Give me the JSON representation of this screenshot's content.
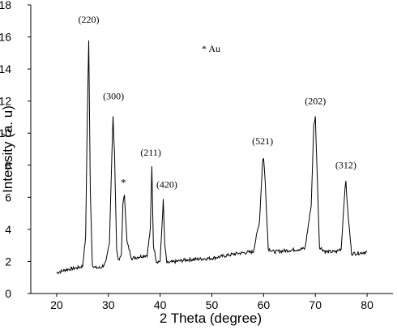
{
  "chart_data": {
    "type": "line",
    "title": "",
    "xlabel": "2 Theta (degree)",
    "ylabel": "Intensity (a. u)",
    "xlim": [
      15,
      85
    ],
    "ylim": [
      0,
      18
    ],
    "xticks": [
      20,
      30,
      40,
      50,
      60,
      70,
      80
    ],
    "yticks": [
      0,
      2,
      4,
      6,
      8,
      10,
      12,
      14,
      16,
      18
    ],
    "grid": false,
    "legend": {
      "text": "* Au",
      "placement": "top-center"
    },
    "series": [
      {
        "x": [
          20.0,
          22.0,
          24.0,
          25.0,
          25.6,
          25.9,
          26.2,
          26.5,
          26.9,
          27.5,
          28.5,
          29.5,
          30.2,
          30.7,
          30.9,
          31.2,
          31.6,
          32.0,
          32.5,
          32.8,
          33.1,
          33.6,
          34.5,
          36.0,
          37.5,
          38.1,
          38.4,
          38.7,
          39.3,
          40.0,
          40.4,
          40.6,
          40.9,
          41.3,
          45.0,
          50.0,
          55.0,
          58.0,
          59.2,
          59.8,
          60.0,
          60.3,
          60.9,
          62.0,
          65.0,
          68.0,
          69.2,
          69.7,
          70.0,
          70.3,
          70.8,
          72.0,
          74.0,
          75.0,
          75.6,
          75.9,
          76.3,
          77.0,
          78.0,
          80.0
        ],
        "y": [
          1.3,
          1.5,
          1.6,
          1.7,
          3.5,
          10.5,
          15.8,
          6.5,
          1.8,
          1.6,
          1.6,
          1.9,
          3.2,
          9.0,
          11.0,
          8.5,
          2.7,
          2.0,
          2.4,
          5.5,
          6.2,
          3.2,
          2.2,
          2.3,
          2.4,
          4.0,
          7.9,
          3.0,
          2.0,
          2.0,
          4.5,
          5.8,
          3.0,
          1.9,
          2.1,
          2.2,
          2.5,
          2.6,
          4.5,
          8.2,
          8.5,
          7.0,
          2.8,
          2.6,
          2.7,
          2.8,
          5.5,
          10.5,
          11.0,
          8.0,
          2.9,
          2.6,
          2.6,
          2.8,
          6.0,
          7.0,
          5.0,
          2.5,
          2.5,
          2.6
        ]
      }
    ],
    "annotations": [
      {
        "text": "(220)",
        "x": 26.2,
        "y": 16.9
      },
      {
        "text": "(300)",
        "x": 31.0,
        "y": 12.1
      },
      {
        "text": "*",
        "x": 32.9,
        "y": 6.7
      },
      {
        "text": "(211)",
        "x": 38.2,
        "y": 8.6
      },
      {
        "text": "(420)",
        "x": 41.3,
        "y": 6.6
      },
      {
        "text": "(521)",
        "x": 59.8,
        "y": 9.3
      },
      {
        "text": "(202)",
        "x": 70.0,
        "y": 11.8
      },
      {
        "text": "(312)",
        "x": 75.9,
        "y": 7.8
      }
    ]
  }
}
